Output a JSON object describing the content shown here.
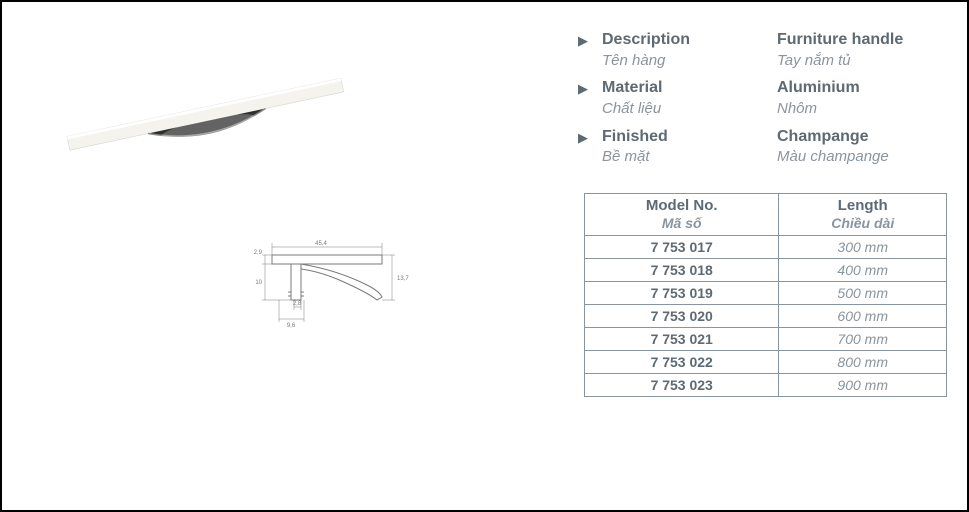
{
  "attributes": [
    {
      "label_en": "Description",
      "label_vi": "Tên hàng",
      "value_en": "Furniture handle",
      "value_vi": "Tay nắm tủ"
    },
    {
      "label_en": "Material",
      "label_vi": "Chất liệu",
      "value_en": "Aluminium",
      "value_vi": "Nhôm"
    },
    {
      "label_en": "Finished",
      "label_vi": "Bề mặt",
      "value_en": "Champange",
      "value_vi": "Màu champange"
    }
  ],
  "table": {
    "headers": {
      "model_en": "Model No.",
      "model_vi": "Mã số",
      "length_en": "Length",
      "length_vi": "Chiều dài"
    },
    "rows": [
      {
        "model": "7 753 017",
        "length": "300 mm"
      },
      {
        "model": "7 753 018",
        "length": "400 mm"
      },
      {
        "model": "7 753 019",
        "length": "500 mm"
      },
      {
        "model": "7 753 020",
        "length": "600 mm"
      },
      {
        "model": "7 753 021",
        "length": "700 mm"
      },
      {
        "model": "7 753 022",
        "length": "800 mm"
      },
      {
        "model": "7 753 023",
        "length": "900 mm"
      }
    ]
  },
  "drawing_dimensions": {
    "top_width": "45,4",
    "top_height": "2,9",
    "side_height": "10",
    "profile_height": "13,7",
    "base_inner": "2,8",
    "base_outer": "9,6"
  },
  "colors": {
    "text_primary": "#5e6a73",
    "text_secondary": "#8a949c",
    "border": "#8a949c",
    "page_border": "#000000",
    "background": "#ffffff"
  },
  "typography": {
    "font_family": "Arial, Helvetica, sans-serif",
    "label_en_size": 16,
    "label_vi_size": 15,
    "table_header_en_size": 15,
    "table_header_vi_size": 14,
    "table_cell_size": 14
  }
}
